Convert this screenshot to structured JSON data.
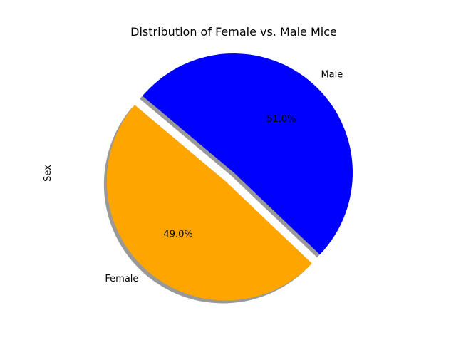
{
  "chart_data": {
    "type": "pie",
    "title": "Distribution of Female vs. Male Mice",
    "ylabel": "Sex",
    "categories": [
      "Female",
      "Male"
    ],
    "values": [
      49.0,
      51.0
    ],
    "value_labels": [
      "49.0%",
      "51.0%"
    ],
    "colors": [
      "#ffa500",
      "#0000ff"
    ],
    "exploded": [
      "Female"
    ],
    "shadow": true,
    "legend": "none"
  }
}
